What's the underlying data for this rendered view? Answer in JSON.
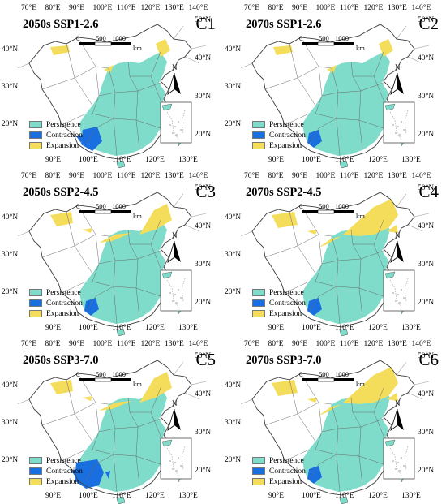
{
  "legend": [
    {
      "label": "Persistence",
      "color": "#7fdcca"
    },
    {
      "label": "Contraction",
      "color": "#1a6fe0"
    },
    {
      "label": "Expansion",
      "color": "#f3dd5a"
    }
  ],
  "scale_bar": {
    "labels": [
      "0",
      "500",
      "1000"
    ],
    "unit": "km"
  },
  "north_label": "N",
  "top_lon_ticks": [
    "70°E",
    "80°E",
    "90°E",
    "100°E",
    "110°E",
    "120°E",
    "130°E",
    "140°E"
  ],
  "bottom_lon_ticks": [
    "90°E",
    "100°E",
    "110°E",
    "120°E",
    "130°E"
  ],
  "left_lat_ticks": [
    "40°N",
    "30°N",
    "20°N"
  ],
  "right_lat_ticks": [
    "50°N",
    "40°N",
    "30°N",
    "20°N"
  ],
  "panels": [
    {
      "id": "C1",
      "title": "2050s SSP1-2.6",
      "expansion_level": 1,
      "contraction_level": 2
    },
    {
      "id": "C2",
      "title": "2070s SSP1-2.6",
      "expansion_level": 1,
      "contraction_level": 1
    },
    {
      "id": "C3",
      "title": "2050s SSP2-4.5",
      "expansion_level": 2,
      "contraction_level": 1
    },
    {
      "id": "C4",
      "title": "2070s SSP2-4.5",
      "expansion_level": 3,
      "contraction_level": 1
    },
    {
      "id": "C5",
      "title": "2050s SSP3-7.0",
      "expansion_level": 2,
      "contraction_level": 3
    },
    {
      "id": "C6",
      "title": "2070s SSP3-7.0",
      "expansion_level": 3,
      "contraction_level": 1
    }
  ]
}
